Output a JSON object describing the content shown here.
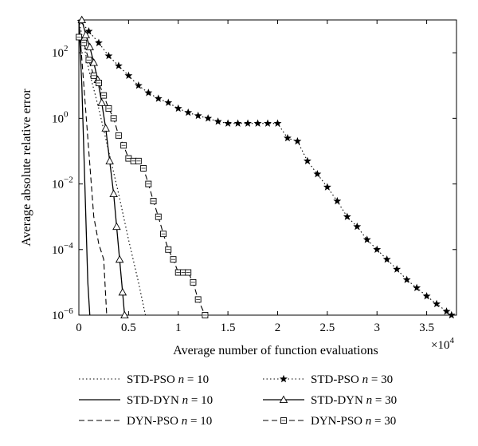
{
  "chart_data": {
    "type": "line",
    "title": "",
    "xlabel": "Average number of function evaluations",
    "ylabel": "Average absolute relative error",
    "x_multiplier_label": "×10",
    "x_multiplier_exp": "4",
    "x_scale_factor": 10000,
    "xlim": [
      0,
      38000
    ],
    "ylim": [
      1e-06,
      1000
    ],
    "y_scale": "log",
    "grid": false,
    "legend_position": "below",
    "x_ticks": [
      {
        "value": 0,
        "label": "0"
      },
      {
        "value": 5000,
        "label": "0.5"
      },
      {
        "value": 10000,
        "label": "1"
      },
      {
        "value": 15000,
        "label": "1.5"
      },
      {
        "value": 20000,
        "label": "2"
      },
      {
        "value": 25000,
        "label": "2.5"
      },
      {
        "value": 30000,
        "label": "3"
      },
      {
        "value": 35000,
        "label": "3.5"
      }
    ],
    "y_ticks": [
      {
        "value": 1e-06,
        "base": "10",
        "exp": "−6"
      },
      {
        "value": 0.0001,
        "base": "10",
        "exp": "−4"
      },
      {
        "value": 0.01,
        "base": "10",
        "exp": "−2"
      },
      {
        "value": 1,
        "base": "10",
        "exp": "0"
      },
      {
        "value": 100,
        "base": "10",
        "exp": "2"
      }
    ],
    "series": [
      {
        "name": "STD-PSO",
        "n": "10",
        "dash": "dotted",
        "marker": "none",
        "color": "#000000",
        "points": [
          [
            0,
            1000
          ],
          [
            1000,
            30
          ],
          [
            2000,
            2
          ],
          [
            3000,
            0.1
          ],
          [
            4000,
            0.005
          ],
          [
            5000,
            0.0002
          ],
          [
            6000,
            1e-05
          ],
          [
            6700,
            1e-06
          ]
        ]
      },
      {
        "name": "STD-DYN",
        "n": "10",
        "dash": "solid",
        "marker": "none",
        "color": "#000000",
        "points": [
          [
            0,
            1000
          ],
          [
            300,
            10
          ],
          [
            500,
            0.1
          ],
          [
            700,
            0.001
          ],
          [
            900,
            1e-05
          ],
          [
            1100,
            1e-06
          ]
        ]
      },
      {
        "name": "DYN-PSO",
        "n": "10",
        "dash": "dashed",
        "marker": "none",
        "color": "#000000",
        "points": [
          [
            0,
            1000
          ],
          [
            500,
            10
          ],
          [
            1000,
            0.1
          ],
          [
            1500,
            0.001
          ],
          [
            2000,
            0.00015
          ],
          [
            2500,
            5e-05
          ],
          [
            2800,
            1e-06
          ]
        ]
      },
      {
        "name": "STD-PSO",
        "n": "30",
        "dash": "dotted",
        "marker": "star",
        "color": "#000000",
        "points": [
          [
            200,
            900
          ],
          [
            1000,
            450
          ],
          [
            2000,
            200
          ],
          [
            3000,
            80
          ],
          [
            4000,
            40
          ],
          [
            5000,
            20
          ],
          [
            6000,
            10
          ],
          [
            7000,
            6
          ],
          [
            8000,
            4
          ],
          [
            9000,
            3
          ],
          [
            10000,
            2
          ],
          [
            11000,
            1.5
          ],
          [
            12000,
            1.2
          ],
          [
            13000,
            1
          ],
          [
            14000,
            0.8
          ],
          [
            15000,
            0.7
          ],
          [
            16000,
            0.7
          ],
          [
            17000,
            0.7
          ],
          [
            18000,
            0.7
          ],
          [
            19000,
            0.7
          ],
          [
            20000,
            0.7
          ],
          [
            21000,
            0.25
          ],
          [
            22000,
            0.2
          ],
          [
            23000,
            0.05
          ],
          [
            24000,
            0.02
          ],
          [
            25000,
            0.008
          ],
          [
            26000,
            0.003
          ],
          [
            27000,
            0.001
          ],
          [
            28000,
            0.0005
          ],
          [
            29000,
            0.0002
          ],
          [
            30000,
            0.0001
          ],
          [
            31000,
            5e-05
          ],
          [
            32000,
            2.5e-05
          ],
          [
            33000,
            1.2e-05
          ],
          [
            34000,
            6.8e-06
          ],
          [
            35000,
            3.8e-06
          ],
          [
            36000,
            2.2e-06
          ],
          [
            37000,
            1.3e-06
          ],
          [
            37500,
            1e-06
          ]
        ]
      },
      {
        "name": "STD-DYN",
        "n": "30",
        "dash": "solid",
        "marker": "triangle",
        "color": "#000000",
        "points": [
          [
            300,
            1000
          ],
          [
            700,
            350
          ],
          [
            1100,
            150
          ],
          [
            1500,
            50
          ],
          [
            1900,
            15
          ],
          [
            2300,
            3
          ],
          [
            2700,
            0.5
          ],
          [
            3100,
            0.05
          ],
          [
            3500,
            0.005
          ],
          [
            3800,
            0.0005
          ],
          [
            4100,
            5e-05
          ],
          [
            4400,
            5e-06
          ],
          [
            4600,
            1e-06
          ]
        ]
      },
      {
        "name": "DYN-PSO",
        "n": "30",
        "dash": "dashed",
        "marker": "square",
        "color": "#000000",
        "points": [
          [
            0,
            300
          ],
          [
            500,
            200
          ],
          [
            1000,
            60
          ],
          [
            1500,
            20
          ],
          [
            2000,
            12
          ],
          [
            2500,
            5
          ],
          [
            3000,
            2
          ],
          [
            3500,
            1
          ],
          [
            4000,
            0.3
          ],
          [
            4500,
            0.15
          ],
          [
            5000,
            0.06
          ],
          [
            5500,
            0.05
          ],
          [
            6000,
            0.05
          ],
          [
            6500,
            0.03
          ],
          [
            7000,
            0.01
          ],
          [
            7500,
            0.003
          ],
          [
            8000,
            0.001
          ],
          [
            8500,
            0.0003
          ],
          [
            9000,
            0.0001
          ],
          [
            9500,
            5e-05
          ],
          [
            10000,
            2e-05
          ],
          [
            10500,
            2e-05
          ],
          [
            11000,
            2e-05
          ],
          [
            11500,
            1e-05
          ],
          [
            12000,
            3e-06
          ],
          [
            12700,
            1e-06
          ]
        ]
      }
    ]
  }
}
